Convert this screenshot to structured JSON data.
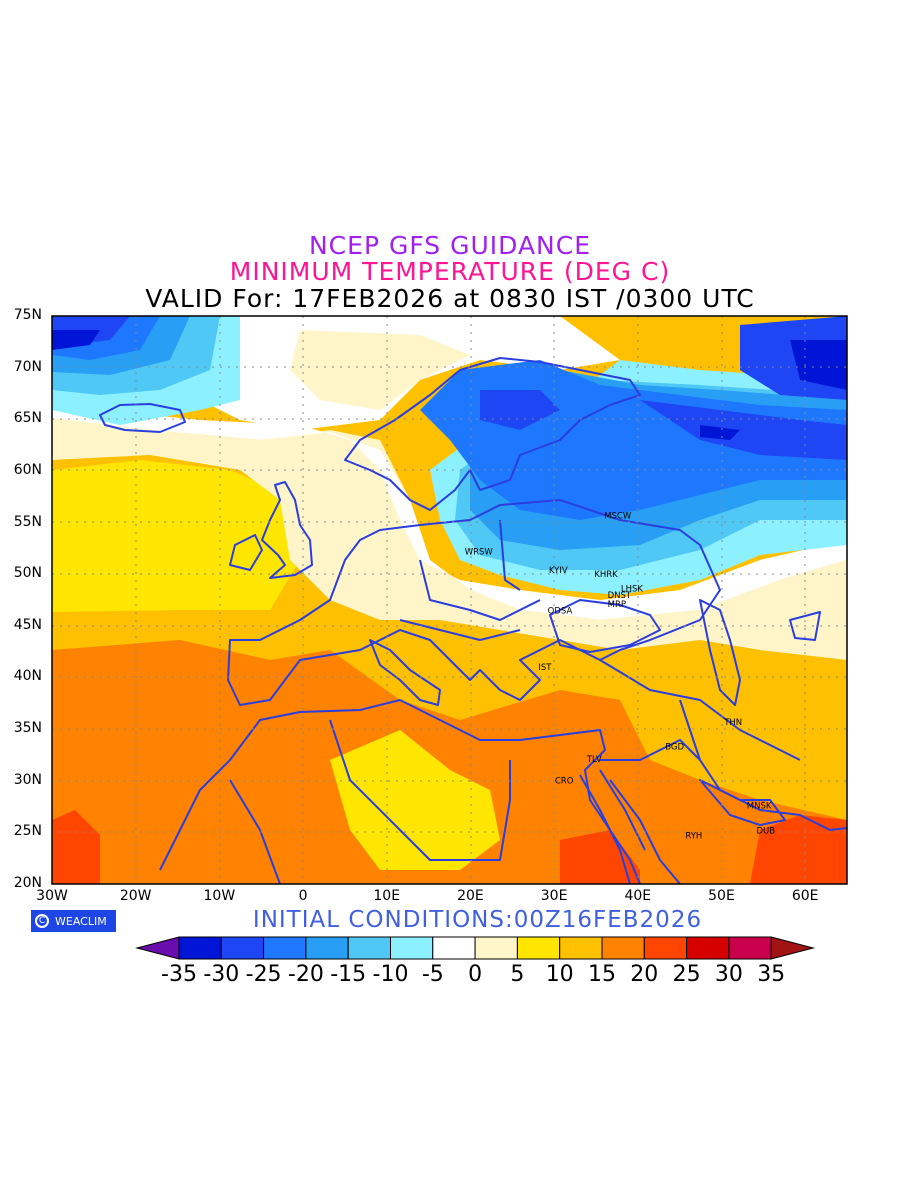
{
  "header": {
    "line1": "NCEP GFS GUIDANCE",
    "line2": "MINIMUM TEMPERATURE (DEG C)",
    "line3": "VALID For: 17FEB2026 at 0830 IST /0300 UTC"
  },
  "map": {
    "lat_labels": [
      "75N",
      "70N",
      "65N",
      "60N",
      "55N",
      "50N",
      "45N",
      "40N",
      "35N",
      "30N",
      "25N",
      "20N"
    ],
    "lon_labels": [
      "30W",
      "20W",
      "10W",
      "0",
      "10E",
      "20E",
      "30E",
      "40E",
      "50E",
      "60E"
    ],
    "lat_range": [
      20,
      75
    ],
    "lon_range": [
      -30,
      65
    ],
    "grid": "dotted",
    "cities": [
      {
        "name": "MSCW",
        "lon": 37.6,
        "lat": 55.7
      },
      {
        "name": "WRSW",
        "lon": 21.0,
        "lat": 52.2
      },
      {
        "name": "KYIV",
        "lon": 30.5,
        "lat": 50.4
      },
      {
        "name": "KHRK",
        "lon": 36.2,
        "lat": 50.0
      },
      {
        "name": "LHSK",
        "lon": 39.3,
        "lat": 48.6
      },
      {
        "name": "DNST",
        "lon": 37.8,
        "lat": 48.0
      },
      {
        "name": "MRP",
        "lon": 37.5,
        "lat": 47.1
      },
      {
        "name": "ODSA",
        "lon": 30.7,
        "lat": 46.5
      },
      {
        "name": "IST",
        "lon": 28.9,
        "lat": 41.0
      },
      {
        "name": "THN",
        "lon": 51.4,
        "lat": 35.7
      },
      {
        "name": "BGD",
        "lon": 44.4,
        "lat": 33.3
      },
      {
        "name": "TLV",
        "lon": 34.8,
        "lat": 32.1
      },
      {
        "name": "CRO",
        "lon": 31.2,
        "lat": 30.0
      },
      {
        "name": "MNSK",
        "lon": 54.5,
        "lat": 27.6
      },
      {
        "name": "RYH",
        "lon": 46.7,
        "lat": 24.7
      },
      {
        "name": "DUB",
        "lon": 55.3,
        "lat": 25.2
      }
    ]
  },
  "branding": {
    "logo_text": "WEACLIM"
  },
  "footer": {
    "initial_conditions": "INITIAL CONDITIONS:00Z16FEB2026"
  },
  "colorbar": {
    "labels": [
      "-35",
      "-30",
      "-25",
      "-20",
      "-15",
      "-10",
      "-5",
      "0",
      "5",
      "10",
      "15",
      "20",
      "25",
      "30",
      "35"
    ],
    "colors": [
      "#6a0dad",
      "#0015d6",
      "#1e46f5",
      "#1e78ff",
      "#289ef5",
      "#4fc8f5",
      "#8cf0ff",
      "#ffffff",
      "#fff5c8",
      "#ffe600",
      "#ffc000",
      "#ff8200",
      "#ff4600",
      "#d70000",
      "#c8004b",
      "#a01414"
    ]
  }
}
